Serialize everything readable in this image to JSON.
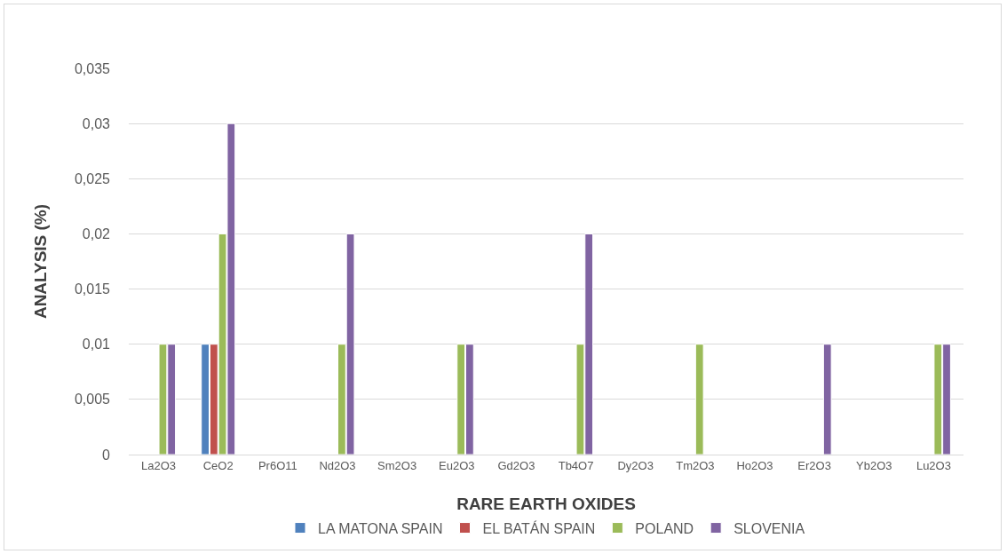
{
  "chart_data": {
    "type": "bar",
    "xlabel": "RARE EARTH OXIDES",
    "ylabel": "ANALYSIS (%)",
    "categories": [
      "La2O3",
      "CeO2",
      "Pr6O11",
      "Nd2O3",
      "Sm2O3",
      "Eu2O3",
      "Gd2O3",
      "Tb4O7",
      "Dy2O3",
      "Tm2O3",
      "Ho2O3",
      "Er2O3",
      "Yb2O3",
      "Lu2O3"
    ],
    "series": [
      {
        "name": "LA MATONA SPAIN",
        "color": "#4f81bd",
        "values": [
          null,
          0.01,
          null,
          null,
          null,
          null,
          null,
          null,
          null,
          null,
          null,
          null,
          null,
          null
        ]
      },
      {
        "name": "EL BATÁN SPAIN",
        "color": "#c0504d",
        "values": [
          null,
          0.01,
          null,
          null,
          null,
          null,
          null,
          null,
          null,
          null,
          null,
          null,
          null,
          null
        ]
      },
      {
        "name": "POLAND",
        "color": "#9bbb59",
        "values": [
          0.01,
          0.02,
          null,
          0.01,
          null,
          0.01,
          null,
          0.01,
          null,
          0.01,
          null,
          null,
          null,
          0.01
        ]
      },
      {
        "name": "SLOVENIA",
        "color": "#8064a2",
        "values": [
          0.01,
          0.03,
          null,
          0.02,
          null,
          0.01,
          null,
          0.02,
          null,
          null,
          null,
          0.01,
          null,
          0.01
        ]
      }
    ],
    "ylim": [
      0,
      0.035
    ],
    "yticks": [
      0,
      {
        "value": 0.005,
        "label": "0,005"
      },
      {
        "value": 0.01,
        "label": "0,01"
      },
      {
        "value": 0.015,
        "label": "0,015"
      },
      {
        "value": 0.02,
        "label": "0,02"
      },
      {
        "value": 0.025,
        "label": "0,025"
      },
      {
        "value": 0.03,
        "label": "0,03"
      },
      {
        "value": 0.035,
        "label": "0,035"
      }
    ],
    "grid": "y",
    "legend": "bottom"
  }
}
